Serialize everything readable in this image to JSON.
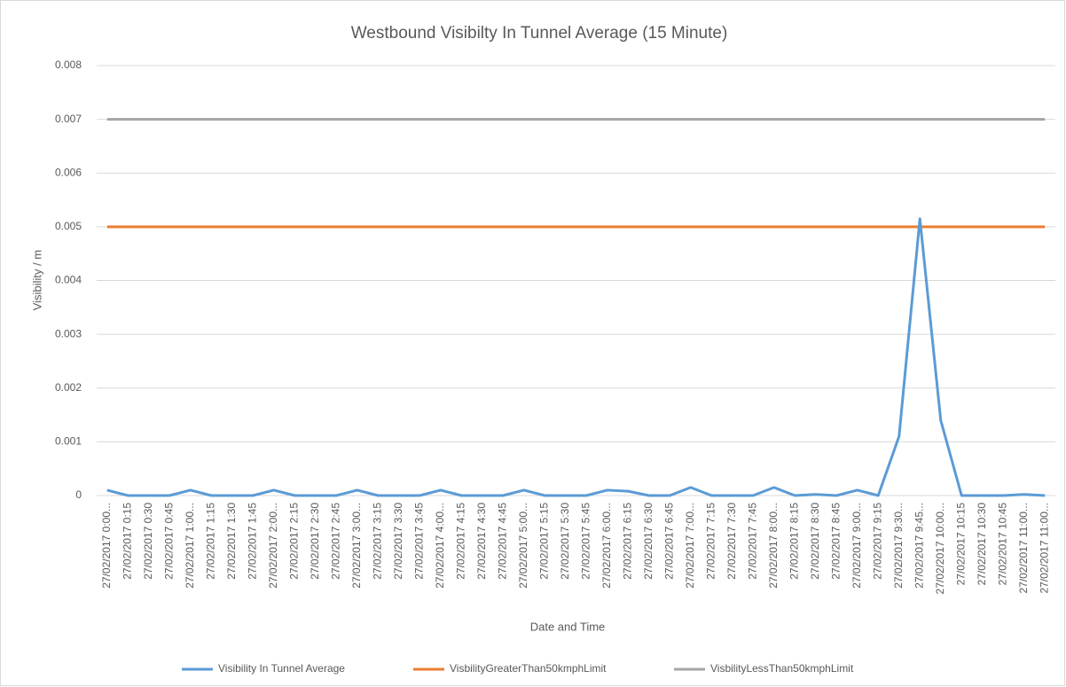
{
  "chart_data": {
    "type": "line",
    "title": "Westbound Visibilty In Tunnel Average (15 Minute)",
    "x_label": "Date and Time",
    "y_label": "Visibility / m",
    "categories": [
      "27/02/2017 0:00...",
      "27/02/2017 0:15",
      "27/02/2017 0:30",
      "27/02/2017 0:45",
      "27/02/2017 1:00...",
      "27/02/2017 1:15",
      "27/02/2017 1:30",
      "27/02/2017 1:45",
      "27/02/2017 2:00...",
      "27/02/2017 2:15",
      "27/02/2017 2:30",
      "27/02/2017 2:45",
      "27/02/2017 3:00...",
      "27/02/2017 3:15",
      "27/02/2017 3:30",
      "27/02/2017 3:45",
      "27/02/2017 4:00...",
      "27/02/2017 4:15",
      "27/02/2017 4:30",
      "27/02/2017 4:45",
      "27/02/2017 5:00...",
      "27/02/2017 5:15",
      "27/02/2017 5:30",
      "27/02/2017 5:45",
      "27/02/2017 6:00...",
      "27/02/2017 6:15",
      "27/02/2017 6:30",
      "27/02/2017 6:45",
      "27/02/2017 7:00...",
      "27/02/2017 7:15",
      "27/02/2017 7:30",
      "27/02/2017 7:45",
      "27/02/2017 8:00...",
      "27/02/2017 8:15",
      "27/02/2017 8:30",
      "27/02/2017 8:45",
      "27/02/2017 9:00...",
      "27/02/2017 9:15",
      "27/02/2017 9:30...",
      "27/02/2017 9:45...",
      "27/02/2017 10:00...",
      "27/02/2017 10:15",
      "27/02/2017 10:30",
      "27/02/2017 10:45",
      "27/02/2017 11:00...",
      "27/02/2017 11:00..."
    ],
    "series": [
      {
        "name": "Visibility In Tunnel Average",
        "color": "#5b9bd5",
        "values": [
          0.0001,
          0,
          0,
          0,
          0.0001,
          0,
          0,
          0,
          0.0001,
          0,
          0,
          0,
          0.0001,
          0,
          0,
          0,
          0.0001,
          0,
          0,
          0,
          0.0001,
          0,
          0,
          0,
          0.0001,
          8e-05,
          0,
          0,
          0.00015,
          0,
          0,
          0,
          0.00015,
          0,
          2e-05,
          0,
          0.0001,
          0,
          0.0011,
          0.00515,
          0.0014,
          0,
          0,
          0,
          2e-05,
          0
        ]
      },
      {
        "name": "VisbilityGreaterThan50kmphLimit",
        "color": "#ed7d31",
        "values": [
          0.005,
          0.005,
          0.005,
          0.005,
          0.005,
          0.005,
          0.005,
          0.005,
          0.005,
          0.005,
          0.005,
          0.005,
          0.005,
          0.005,
          0.005,
          0.005,
          0.005,
          0.005,
          0.005,
          0.005,
          0.005,
          0.005,
          0.005,
          0.005,
          0.005,
          0.005,
          0.005,
          0.005,
          0.005,
          0.005,
          0.005,
          0.005,
          0.005,
          0.005,
          0.005,
          0.005,
          0.005,
          0.005,
          0.005,
          0.005,
          0.005,
          0.005,
          0.005,
          0.005,
          0.005,
          0.005
        ]
      },
      {
        "name": "VisbilityLessThan50kmphLimit",
        "color": "#a5a5a5",
        "values": [
          0.007,
          0.007,
          0.007,
          0.007,
          0.007,
          0.007,
          0.007,
          0.007,
          0.007,
          0.007,
          0.007,
          0.007,
          0.007,
          0.007,
          0.007,
          0.007,
          0.007,
          0.007,
          0.007,
          0.007,
          0.007,
          0.007,
          0.007,
          0.007,
          0.007,
          0.007,
          0.007,
          0.007,
          0.007,
          0.007,
          0.007,
          0.007,
          0.007,
          0.007,
          0.007,
          0.007,
          0.007,
          0.007,
          0.007,
          0.007,
          0.007,
          0.007,
          0.007,
          0.007,
          0.007,
          0.007
        ]
      }
    ],
    "ylim": [
      0,
      0.008
    ],
    "yticks": [
      0,
      0.001,
      0.002,
      0.003,
      0.004,
      0.005,
      0.006,
      0.007,
      0.008
    ],
    "grid": true,
    "legend": "bottom"
  }
}
